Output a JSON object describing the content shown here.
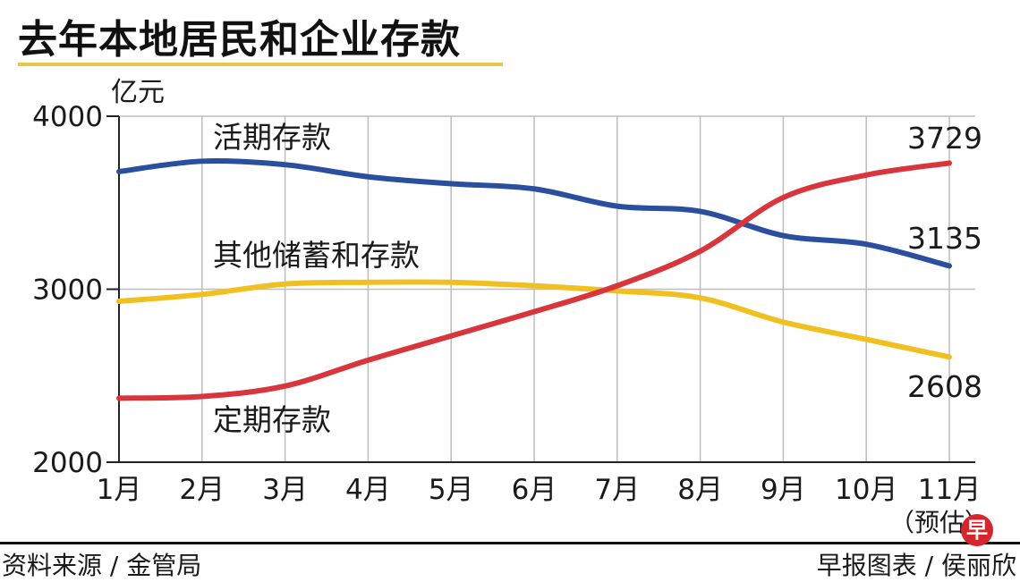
{
  "header": {
    "title": "去年本地居民和企业存款"
  },
  "chart_data": {
    "type": "line",
    "unit": "亿元",
    "categories": [
      "1月",
      "2月",
      "3月",
      "4月",
      "5月",
      "6月",
      "7月",
      "8月",
      "9月",
      "10月",
      "11月"
    ],
    "category_note": "（预估）",
    "ylim": [
      2000,
      4000
    ],
    "yticks": [
      "2000",
      "3000",
      "4000"
    ],
    "grid": true,
    "series": [
      {
        "name": "活期存款",
        "color": "#2a4f9e",
        "values": [
          3680,
          3740,
          3720,
          3650,
          3610,
          3580,
          3480,
          3450,
          3310,
          3260,
          3135
        ],
        "end_label": "3135"
      },
      {
        "name": "其他储蓄和存款",
        "color": "#f0c020",
        "values": [
          2930,
          2970,
          3030,
          3040,
          3040,
          3020,
          2990,
          2950,
          2810,
          2710,
          2608
        ],
        "end_label": "2608"
      },
      {
        "name": "定期存款",
        "color": "#d8363c",
        "values": [
          2370,
          2380,
          2440,
          2590,
          2730,
          2870,
          3020,
          3220,
          3530,
          3660,
          3729
        ],
        "end_label": "3729"
      }
    ]
  },
  "footer": {
    "source": "资料来源 / 金管局",
    "credit": "早报图表 / 侯丽欣",
    "logo_text": "早"
  }
}
